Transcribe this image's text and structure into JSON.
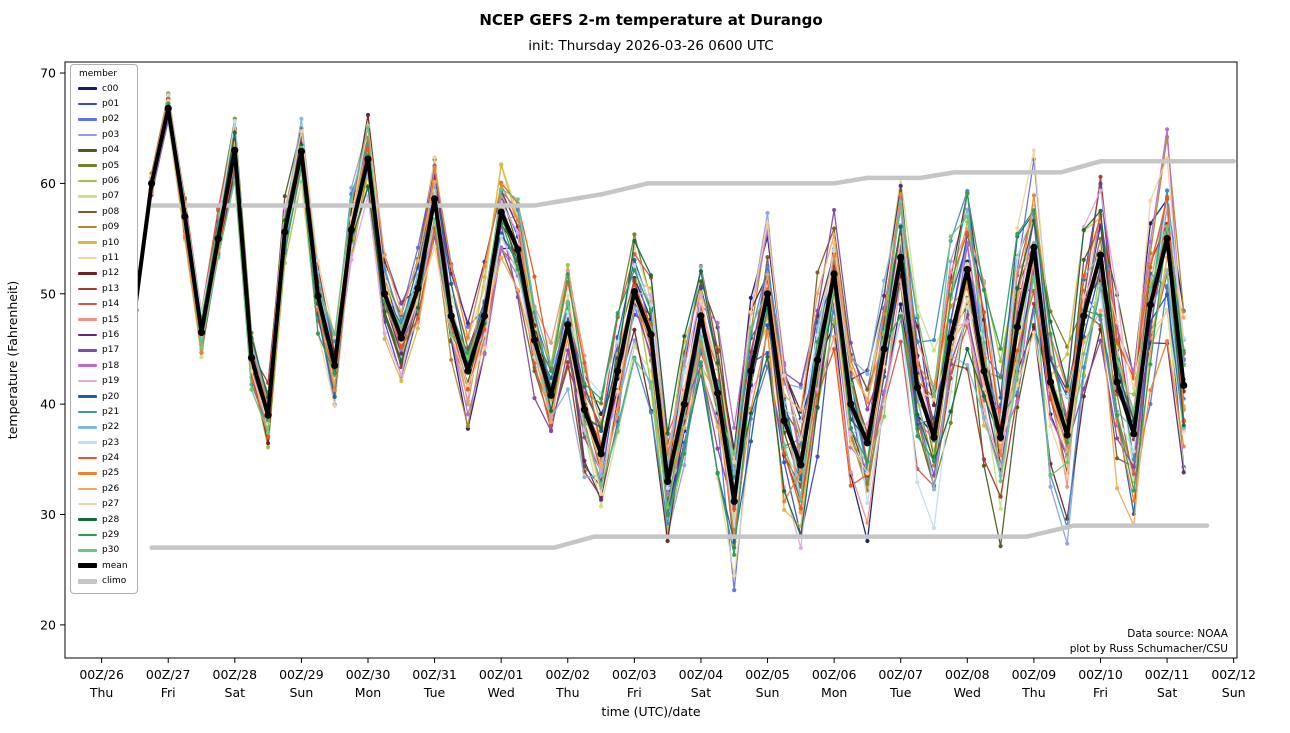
{
  "title": "NCEP GEFS 2-m temperature at Durango",
  "subtitle": "init: Thursday 2026-03-26 0600 UTC",
  "annotations": {
    "source": "Data source: NOAA",
    "credit": "plot by Russ Schumacher/CSU"
  },
  "legend": {
    "title": "member"
  },
  "chart_data": {
    "type": "line",
    "title": "NCEP GEFS 2-m temperature at Durango",
    "subtitle": "init: Thursday 2026-03-26 0600 UTC",
    "xlabel": "time (UTC)/date",
    "ylabel": "temperature (Fahrenheit)",
    "ylim": [
      17,
      71
    ],
    "yticks": [
      20,
      30,
      40,
      50,
      60,
      70
    ],
    "xlim_days": [
      -0.55,
      17.05
    ],
    "xticks": [
      {
        "utc": "00Z/26",
        "day": "Thu"
      },
      {
        "utc": "00Z/27",
        "day": "Fri"
      },
      {
        "utc": "00Z/28",
        "day": "Sat"
      },
      {
        "utc": "00Z/29",
        "day": "Sun"
      },
      {
        "utc": "00Z/30",
        "day": "Mon"
      },
      {
        "utc": "00Z/31",
        "day": "Tue"
      },
      {
        "utc": "00Z/01",
        "day": "Wed"
      },
      {
        "utc": "00Z/02",
        "day": "Thu"
      },
      {
        "utc": "00Z/03",
        "day": "Fri"
      },
      {
        "utc": "00Z/04",
        "day": "Sat"
      },
      {
        "utc": "00Z/05",
        "day": "Sun"
      },
      {
        "utc": "00Z/06",
        "day": "Mon"
      },
      {
        "utc": "00Z/07",
        "day": "Tue"
      },
      {
        "utc": "00Z/08",
        "day": "Wed"
      },
      {
        "utc": "00Z/09",
        "day": "Thu"
      },
      {
        "utc": "00Z/10",
        "day": "Fri"
      },
      {
        "utc": "00Z/11",
        "day": "Sat"
      },
      {
        "utc": "00Z/12",
        "day": "Sun"
      }
    ],
    "time_start_day": 0.25,
    "time_step_days": 0.25,
    "mean": {
      "label": "mean",
      "color": "#000000",
      "values": [
        56.0,
        48.5,
        60.0,
        66.8,
        57.0,
        46.5,
        55.0,
        63.0,
        44.2,
        39.0,
        55.6,
        62.9,
        49.8,
        43.5,
        55.8,
        62.2,
        50.0,
        46.0,
        50.5,
        58.6,
        48.0,
        43.0,
        48.0,
        57.4,
        54.0,
        45.8,
        40.8,
        47.2,
        39.5,
        35.5,
        43.0,
        50.2,
        46.3,
        33.0,
        40.0,
        48.0,
        41.0,
        31.2,
        43.0,
        50.0,
        38.5,
        34.5,
        44.0,
        51.8,
        40.0,
        36.5,
        45.0,
        53.3,
        41.5,
        37.0,
        46.0,
        52.2,
        43.0,
        37.0,
        47.0,
        54.2,
        42.0,
        37.2,
        48.0,
        53.5,
        42.0,
        37.3,
        49.0,
        55.0,
        41.7
      ]
    },
    "climo": {
      "label": "climo",
      "color": "#c6c6c6",
      "upper": {
        "x": [
          0.75,
          6.5,
          7.5,
          8.2,
          11.0,
          11.5,
          12.3,
          12.8,
          14.4,
          15.0,
          17.0
        ],
        "y": [
          58,
          58,
          59,
          60,
          60,
          60.5,
          60.5,
          61,
          61,
          62,
          62
        ]
      },
      "lower": {
        "x": [
          0.75,
          6.8,
          7.4,
          13.9,
          14.6,
          16.6
        ],
        "y": [
          27,
          27,
          28,
          28,
          29,
          29
        ]
      }
    },
    "spread": [
      0.0,
      0.6,
      1.2,
      1.8,
      2.0,
      2.2,
      2.4,
      2.6,
      2.7,
      2.9,
      3.0,
      3.2,
      3.3,
      3.5,
      3.6,
      3.8,
      3.9,
      4.1,
      4.2,
      4.4,
      4.5,
      4.7,
      4.8,
      5.0,
      5.1,
      5.3,
      5.4,
      5.6,
      5.7,
      5.9,
      6.0,
      6.2,
      6.3,
      6.5,
      6.6,
      6.8,
      6.9,
      7.1,
      7.2,
      7.4,
      7.5,
      7.7,
      7.8,
      8.0,
      8.1,
      8.3,
      8.4,
      8.6,
      8.7,
      8.9,
      9.0,
      9.0,
      9.0,
      9.0,
      9.0,
      9.0,
      9.0,
      9.0,
      9.0,
      9.0,
      9.0,
      9.0,
      9.0,
      9.0,
      9.0
    ],
    "members": [
      {
        "id": "c00",
        "color": "#191970",
        "seed": 0
      },
      {
        "id": "p01",
        "color": "#3a4cc0",
        "seed": 1
      },
      {
        "id": "p02",
        "color": "#5f74d8",
        "seed": 2
      },
      {
        "id": "p03",
        "color": "#8fa0e8",
        "seed": 3
      },
      {
        "id": "p04",
        "color": "#4f5a1e",
        "seed": 4
      },
      {
        "id": "p05",
        "color": "#6f8428",
        "seed": 5
      },
      {
        "id": "p06",
        "color": "#9ec342",
        "seed": 6
      },
      {
        "id": "p07",
        "color": "#c8e086",
        "seed": 7
      },
      {
        "id": "p08",
        "color": "#7a5c28",
        "seed": 8
      },
      {
        "id": "p09",
        "color": "#b08930",
        "seed": 9
      },
      {
        "id": "p10",
        "color": "#d9b83e",
        "seed": 10
      },
      {
        "id": "p11",
        "color": "#ecd79e",
        "seed": 11
      },
      {
        "id": "p12",
        "color": "#6e2222",
        "seed": 12
      },
      {
        "id": "p13",
        "color": "#a03a32",
        "seed": 13
      },
      {
        "id": "p14",
        "color": "#d4574e",
        "seed": 14
      },
      {
        "id": "p15",
        "color": "#f09088",
        "seed": 15
      },
      {
        "id": "p16",
        "color": "#5a2a78",
        "seed": 16
      },
      {
        "id": "p17",
        "color": "#8648a8",
        "seed": 17
      },
      {
        "id": "p18",
        "color": "#b86ccc",
        "seed": 18
      },
      {
        "id": "p19",
        "color": "#e4a6e0",
        "seed": 19
      },
      {
        "id": "p20",
        "color": "#1f5f9e",
        "seed": 20
      },
      {
        "id": "p21",
        "color": "#3f8ec4",
        "seed": 21
      },
      {
        "id": "p22",
        "color": "#7fb8d8",
        "seed": 22
      },
      {
        "id": "p23",
        "color": "#bfdeee",
        "seed": 23
      },
      {
        "id": "p24",
        "color": "#e8561e",
        "seed": 24
      },
      {
        "id": "p25",
        "color": "#f08234",
        "seed": 25
      },
      {
        "id": "p26",
        "color": "#f4a65c",
        "seed": 26
      },
      {
        "id": "p27",
        "color": "#f8d09c",
        "seed": 27
      },
      {
        "id": "p28",
        "color": "#156a38",
        "seed": 28
      },
      {
        "id": "p29",
        "color": "#2f9e55",
        "seed": 29
      },
      {
        "id": "p30",
        "color": "#6ec47c",
        "seed": 30
      }
    ]
  }
}
